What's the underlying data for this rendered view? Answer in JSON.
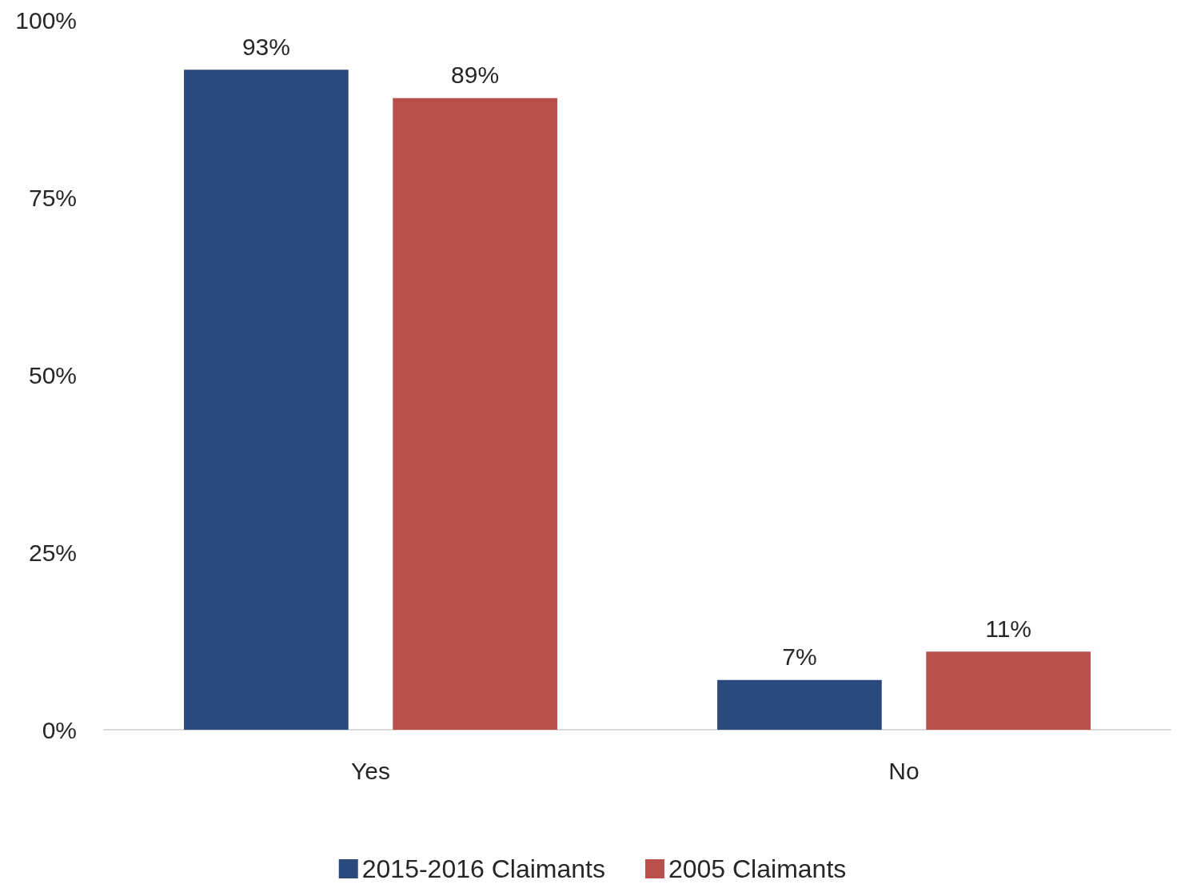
{
  "chart_data": {
    "type": "bar",
    "categories": [
      "Yes",
      "No"
    ],
    "series": [
      {
        "name": "2015-2016 Claimants",
        "color": "#2a4a7e",
        "values": [
          93,
          7
        ],
        "value_labels": [
          "93%",
          "7%"
        ]
      },
      {
        "name": "2005 Claimants",
        "color": "#b94f4b",
        "values": [
          89,
          11
        ],
        "value_labels": [
          "89%",
          "11%"
        ]
      }
    ],
    "ylim": [
      0,
      100
    ],
    "yticks": [
      {
        "value": 0,
        "label": "0%"
      },
      {
        "value": 25,
        "label": "25%"
      },
      {
        "value": 50,
        "label": "50%"
      },
      {
        "value": 75,
        "label": "75%"
      },
      {
        "value": 100,
        "label": "100%"
      }
    ],
    "legend": "bottom",
    "grid": false
  }
}
